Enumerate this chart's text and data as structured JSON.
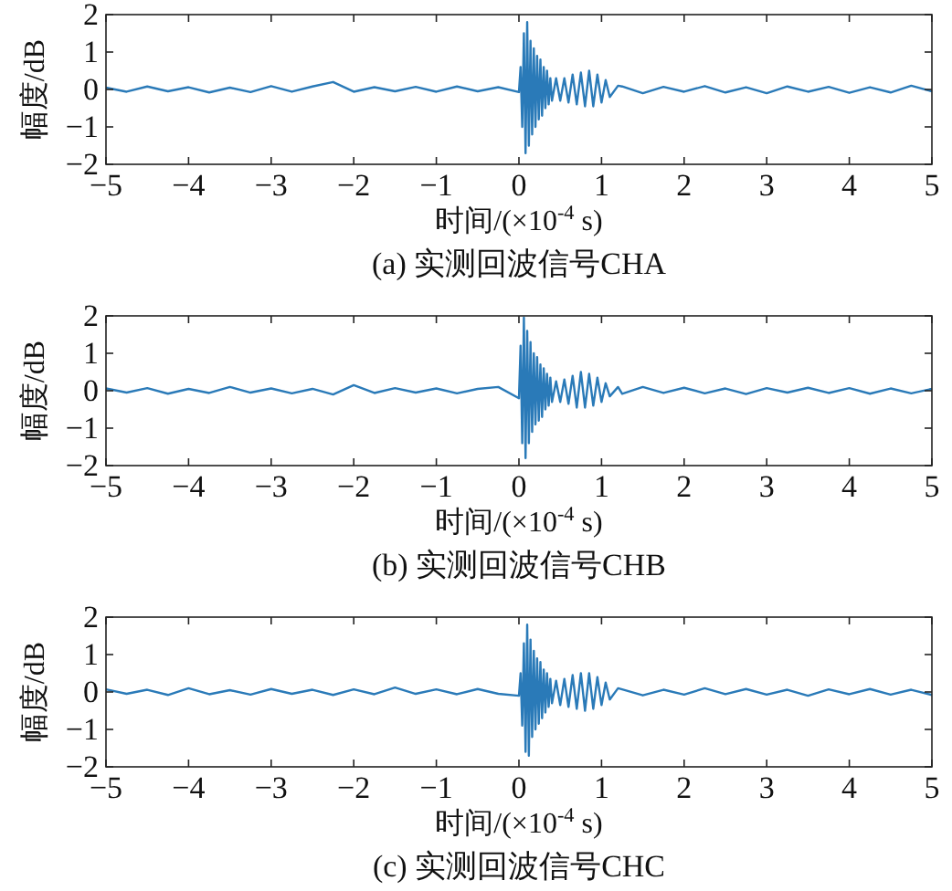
{
  "chart_data": [
    {
      "type": "line",
      "title": "(a) 实测回波信号CHA",
      "xlabel": "时间/(×10$^{-4}$ s)",
      "ylabel": "幅度/dB",
      "xlim": [
        -5,
        5
      ],
      "ylim": [
        -2,
        2
      ],
      "xticks": [
        -5,
        -4,
        -3,
        -2,
        -1,
        0,
        1,
        2,
        3,
        4,
        5
      ],
      "yticks": [
        -2,
        -1,
        0,
        1,
        2
      ],
      "series": [
        {
          "color": "#2a7ab8",
          "x": [
            -5,
            -4.75,
            -4.5,
            -4.25,
            -4,
            -3.75,
            -3.5,
            -3.25,
            -3,
            -2.75,
            -2.5,
            -2.25,
            -2,
            -1.75,
            -1.5,
            -1.25,
            -1,
            -0.75,
            -0.5,
            -0.25,
            0,
            0.02,
            0.04,
            0.06,
            0.08,
            0.1,
            0.12,
            0.14,
            0.16,
            0.18,
            0.2,
            0.22,
            0.24,
            0.26,
            0.28,
            0.3,
            0.32,
            0.34,
            0.36,
            0.38,
            0.4,
            0.45,
            0.5,
            0.55,
            0.6,
            0.65,
            0.7,
            0.75,
            0.8,
            0.85,
            0.9,
            0.95,
            1,
            1.05,
            1.1,
            1.2,
            1.25,
            1.5,
            1.75,
            2,
            2.25,
            2.5,
            2.75,
            3,
            3.25,
            3.5,
            3.75,
            4,
            4.25,
            4.5,
            4.75,
            5
          ],
          "values": [
            0.05,
            -0.06,
            0.08,
            -0.05,
            0.06,
            -0.08,
            0.05,
            -0.07,
            0.09,
            -0.06,
            0.08,
            0.2,
            -0.06,
            0.06,
            -0.05,
            0.07,
            -0.06,
            0.08,
            -0.05,
            0.06,
            -0.07,
            0.6,
            -1.0,
            1.5,
            -1.7,
            1.8,
            -1.5,
            1.3,
            -1.2,
            1.1,
            -1.0,
            0.9,
            -0.8,
            0.8,
            -0.7,
            0.6,
            -0.5,
            0.5,
            -0.4,
            0.3,
            -0.3,
            0.3,
            -0.3,
            0.3,
            -0.35,
            0.4,
            -0.4,
            0.45,
            -0.45,
            0.5,
            -0.45,
            0.4,
            -0.35,
            0.25,
            -0.2,
            0.1,
            0.08,
            -0.1,
            0.07,
            -0.06,
            0.09,
            -0.08,
            0.06,
            -0.1,
            0.08,
            -0.06,
            0.07,
            -0.09,
            0.06,
            -0.08,
            0.1,
            -0.05
          ]
        }
      ]
    },
    {
      "type": "line",
      "title": "(b) 实测回波信号CHB",
      "xlabel": "时间/(×10$^{-4}$ s)",
      "ylabel": "幅度/dB",
      "xlim": [
        -5,
        5
      ],
      "ylim": [
        -2,
        2
      ],
      "xticks": [
        -5,
        -4,
        -3,
        -2,
        -1,
        0,
        1,
        2,
        3,
        4,
        5
      ],
      "yticks": [
        -2,
        -1,
        0,
        1,
        2
      ],
      "series": [
        {
          "color": "#2a7ab8",
          "x": [
            -5,
            -4.75,
            -4.5,
            -4.25,
            -4,
            -3.75,
            -3.5,
            -3.25,
            -3,
            -2.75,
            -2.5,
            -2.25,
            -2,
            -1.75,
            -1.5,
            -1.25,
            -1,
            -0.75,
            -0.5,
            -0.25,
            0,
            0.02,
            0.04,
            0.06,
            0.08,
            0.1,
            0.12,
            0.14,
            0.16,
            0.18,
            0.2,
            0.22,
            0.24,
            0.26,
            0.28,
            0.3,
            0.32,
            0.34,
            0.36,
            0.38,
            0.4,
            0.45,
            0.5,
            0.55,
            0.6,
            0.65,
            0.7,
            0.75,
            0.8,
            0.85,
            0.9,
            0.95,
            1,
            1.05,
            1.1,
            1.2,
            1.25,
            1.5,
            1.75,
            2,
            2.25,
            2.5,
            2.75,
            3,
            3.25,
            3.5,
            3.75,
            4,
            4.25,
            4.5,
            4.75,
            5
          ],
          "values": [
            0.06,
            -0.05,
            0.07,
            -0.08,
            0.05,
            -0.06,
            0.1,
            -0.05,
            0.06,
            -0.07,
            0.05,
            -0.1,
            0.15,
            -0.06,
            0.07,
            -0.05,
            0.06,
            -0.07,
            0.05,
            0.1,
            -0.2,
            1.2,
            -1.4,
            1.95,
            -1.8,
            1.6,
            -1.4,
            1.3,
            -1.1,
            1.0,
            -0.9,
            0.9,
            -0.8,
            0.7,
            -0.7,
            0.6,
            -0.5,
            0.45,
            -0.4,
            0.35,
            -0.3,
            0.25,
            -0.3,
            0.3,
            -0.35,
            0.4,
            -0.45,
            0.5,
            -0.45,
            0.45,
            -0.4,
            0.35,
            -0.3,
            0.2,
            -0.15,
            0.1,
            -0.08,
            0.1,
            -0.06,
            0.08,
            -0.07,
            0.06,
            -0.09,
            0.07,
            -0.05,
            0.08,
            -0.06,
            0.07,
            -0.08,
            0.06,
            -0.07,
            0.05
          ]
        }
      ]
    },
    {
      "type": "line",
      "title": "(c) 实测回波信号CHC",
      "xlabel": "时间/(×10$^{-4}$ s)",
      "ylabel": "幅度/dB",
      "xlim": [
        -5,
        5
      ],
      "ylim": [
        -2,
        2
      ],
      "xticks": [
        -5,
        -4,
        -3,
        -2,
        -1,
        0,
        1,
        2,
        3,
        4,
        5
      ],
      "yticks": [
        -2,
        -1,
        0,
        1,
        2
      ],
      "series": [
        {
          "color": "#2a7ab8",
          "x": [
            -5,
            -4.75,
            -4.5,
            -4.25,
            -4,
            -3.75,
            -3.5,
            -3.25,
            -3,
            -2.75,
            -2.5,
            -2.25,
            -2,
            -1.75,
            -1.5,
            -1.25,
            -1,
            -0.75,
            -0.5,
            -0.25,
            0,
            0.02,
            0.04,
            0.06,
            0.08,
            0.1,
            0.12,
            0.14,
            0.16,
            0.18,
            0.2,
            0.22,
            0.24,
            0.26,
            0.28,
            0.3,
            0.32,
            0.34,
            0.36,
            0.38,
            0.4,
            0.45,
            0.5,
            0.55,
            0.6,
            0.65,
            0.7,
            0.75,
            0.8,
            0.85,
            0.9,
            0.95,
            1,
            1.05,
            1.1,
            1.2,
            1.25,
            1.5,
            1.75,
            2,
            2.25,
            2.5,
            2.75,
            3,
            3.25,
            3.5,
            3.75,
            4,
            4.25,
            4.5,
            4.75,
            5
          ],
          "values": [
            0.07,
            -0.05,
            0.06,
            -0.08,
            0.1,
            -0.06,
            0.05,
            -0.07,
            0.08,
            -0.05,
            0.06,
            -0.08,
            0.07,
            -0.06,
            0.12,
            -0.05,
            0.07,
            -0.06,
            0.08,
            -0.05,
            -0.1,
            0.5,
            -0.9,
            1.3,
            -1.6,
            1.8,
            -1.7,
            1.4,
            -1.2,
            1.1,
            -1.0,
            0.9,
            -0.85,
            0.8,
            -0.7,
            0.6,
            -0.55,
            0.5,
            -0.4,
            0.35,
            -0.3,
            0.3,
            -0.35,
            0.35,
            -0.4,
            0.45,
            -0.45,
            0.5,
            -0.5,
            0.5,
            -0.45,
            0.4,
            -0.35,
            0.25,
            -0.2,
            0.1,
            0.07,
            -0.09,
            0.06,
            -0.07,
            0.1,
            -0.06,
            0.08,
            -0.07,
            0.06,
            -0.1,
            0.07,
            -0.06,
            0.08,
            -0.07,
            0.06,
            -0.08
          ]
        }
      ]
    }
  ]
}
